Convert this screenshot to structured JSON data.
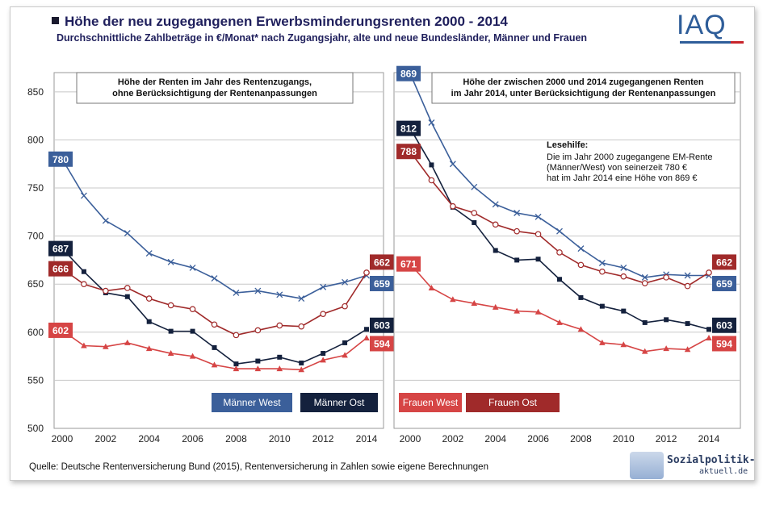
{
  "title": "Höhe der neu zugegangenen Erwerbsminderungsrenten 2000 - 2014",
  "subtitle": "Durchschnittliche Zahlbeträge in €/Monat* nach Zugangsjahr,  alte und neue Bundesländer, Männer und Frauen",
  "logo": "IAQ",
  "source": "Quelle: Deutsche Rentenversicherung Bund (2015), Rentenversicherung in Zahlen sowie eigene Berechnungen",
  "watermark": {
    "line1": "Sozialpolitik-",
    "line2": "aktuell.de"
  },
  "colors": {
    "maenner_west": "#3b5f9a",
    "maenner_ost": "#14213d",
    "frauen_west": "#d64545",
    "frauen_ost": "#a02a2a",
    "grid": "#c8c8c8",
    "panel_border": "#9a9a9a"
  },
  "chart_data": [
    {
      "type": "line",
      "panel": "left",
      "box_text": [
        "Höhe der Renten im Jahr des Rentenzugangs,",
        "ohne Berücksichtigung der Rentenanpassungen"
      ],
      "x": [
        2000,
        2001,
        2002,
        2003,
        2004,
        2005,
        2006,
        2007,
        2008,
        2009,
        2010,
        2011,
        2012,
        2013,
        2014
      ],
      "xticks": [
        "2000",
        "2002",
        "2004",
        "2006",
        "2008",
        "2010",
        "2012",
        "2014"
      ],
      "yticks": [
        "500",
        "550",
        "600",
        "650",
        "700",
        "750",
        "800",
        "850"
      ],
      "ylim": [
        500,
        870
      ],
      "series": [
        {
          "name": "Männer West",
          "key": "mw",
          "marker": "x",
          "values": [
            780,
            742,
            716,
            703,
            682,
            673,
            667,
            656,
            641,
            643,
            639,
            635,
            647,
            652,
            659
          ],
          "start_label": "780",
          "end_label": "659"
        },
        {
          "name": "Männer Ost",
          "key": "mo",
          "marker": "square",
          "values": [
            687,
            663,
            641,
            637,
            611,
            601,
            601,
            584,
            567,
            570,
            574,
            568,
            578,
            589,
            603
          ],
          "start_label": "687",
          "end_label": "603"
        },
        {
          "name": "Frauen West",
          "key": "fw",
          "marker": "triangle",
          "values": [
            602,
            586,
            585,
            589,
            583,
            578,
            575,
            566,
            562,
            562,
            562,
            561,
            571,
            576,
            594
          ],
          "start_label": "602",
          "end_label": "594"
        },
        {
          "name": "Frauen Ost",
          "key": "fo",
          "marker": "circle",
          "values": [
            666,
            650,
            643,
            646,
            635,
            628,
            624,
            608,
            597,
            602,
            607,
            606,
            619,
            627,
            662
          ],
          "start_label": "666",
          "end_label": "662"
        }
      ],
      "legend": [
        "Männer West",
        "Männer Ost"
      ]
    },
    {
      "type": "line",
      "panel": "right",
      "box_text": [
        "Höhe der zwischen 2000 und 2014 zugegangenen Renten",
        "im Jahr 2014, unter Berücksichtigung der Rentenanpassungen"
      ],
      "annotation": {
        "title": "Lesehilfe:",
        "lines": [
          "Die im Jahr 2000 zugegangene EM-Rente",
          "(Männer/West) von seinerzeit 780 €",
          "hat im Jahr 2014 eine Höhe von 869 €"
        ]
      },
      "x": [
        2000,
        2001,
        2002,
        2003,
        2004,
        2005,
        2006,
        2007,
        2008,
        2009,
        2010,
        2011,
        2012,
        2013,
        2014
      ],
      "xticks": [
        "2000",
        "2002",
        "2004",
        "2006",
        "2008",
        "2010",
        "2012",
        "2014"
      ],
      "ylim": [
        500,
        870
      ],
      "series": [
        {
          "name": "Männer West",
          "key": "mw",
          "marker": "x",
          "values": [
            869,
            818,
            775,
            751,
            733,
            724,
            720,
            705,
            687,
            672,
            667,
            657,
            660,
            659,
            659
          ],
          "start_label": "869",
          "end_label": "659"
        },
        {
          "name": "Männer Ost",
          "key": "mo",
          "marker": "square",
          "values": [
            812,
            774,
            730,
            714,
            685,
            675,
            676,
            655,
            636,
            627,
            622,
            610,
            613,
            609,
            603
          ],
          "start_label": "812",
          "end_label": "603"
        },
        {
          "name": "Frauen West",
          "key": "fw",
          "marker": "triangle",
          "values": [
            671,
            646,
            634,
            630,
            626,
            622,
            621,
            610,
            603,
            589,
            587,
            580,
            583,
            582,
            594
          ],
          "start_label": "671",
          "end_label": "594"
        },
        {
          "name": "Frauen Ost",
          "key": "fo",
          "marker": "circle",
          "values": [
            788,
            758,
            731,
            724,
            712,
            705,
            702,
            683,
            670,
            663,
            658,
            651,
            657,
            648,
            662
          ],
          "start_label": "788",
          "end_label": "662"
        }
      ],
      "legend": [
        "Frauen West",
        "Frauen Ost"
      ]
    }
  ]
}
